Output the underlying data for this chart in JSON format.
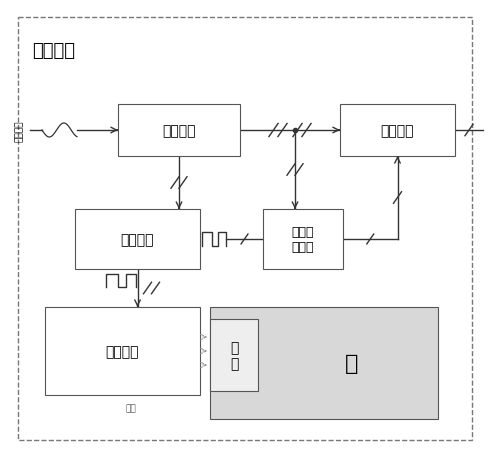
{
  "title": "控制電路",
  "bg_color": "#ffffff",
  "outer_box_color": "#777777",
  "box_edge_color": "#555555",
  "water_bg": "#d8d8d8",
  "label_shudian": "供電電路",
  "label_qudong": "驅動電路",
  "label_kongzhi": "控制單元",
  "label_fangbo": "方波輸\n出模塊",
  "label_dianci": "電磁線圈",
  "label_daoti": "導\n體",
  "label_shui": "水",
  "label_shichang": "磁場",
  "label_input": "市電輸入",
  "line_color": "#333333",
  "dash_color": "#999999"
}
